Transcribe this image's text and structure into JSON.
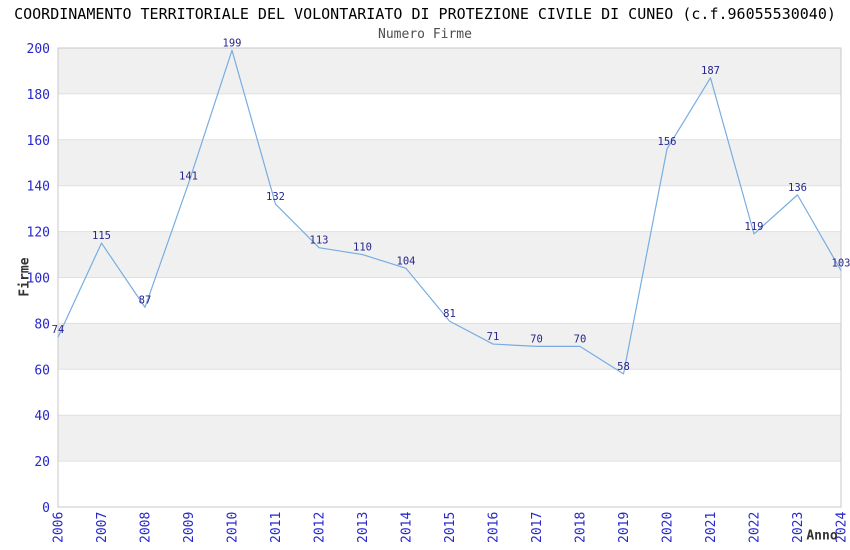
{
  "header": {
    "title": "COORDINAMENTO TERRITORIALE DEL VOLONTARIATO DI PROTEZIONE CIVILE DI CUNEO (c.f.96055530040)",
    "subtitle": "Numero Firme"
  },
  "chart_data": {
    "type": "line",
    "title": "Numero Firme",
    "xlabel": "Anno",
    "ylabel": "Firme",
    "categories": [
      "2006",
      "2007",
      "2008",
      "2009",
      "2010",
      "2011",
      "2012",
      "2013",
      "2014",
      "2015",
      "2016",
      "2017",
      "2018",
      "2019",
      "2020",
      "2021",
      "2022",
      "2023",
      "2024"
    ],
    "values": [
      74,
      115,
      87,
      141,
      199,
      132,
      113,
      110,
      104,
      81,
      71,
      70,
      70,
      58,
      156,
      187,
      119,
      136,
      103
    ],
    "ylim": [
      0,
      200
    ],
    "ytick_step": 20,
    "yticks": [
      0,
      20,
      40,
      60,
      80,
      100,
      120,
      140,
      160,
      180,
      200
    ],
    "grid": "horizontal-bands-alternating",
    "legend": "none",
    "point_labels_visible": true,
    "x_tick_rotation_degrees": -90,
    "colors": {
      "line": "#79ADE1",
      "point_label": "#26268C",
      "tick_label": "#2727CC",
      "band": "#F0F0F0",
      "gridline": "#E0E0E0",
      "plot_border": "#C8C8C8",
      "title": "#000000",
      "subtitle": "#4D4D4D",
      "axis_title": "#333333",
      "background": "#FFFFFF"
    }
  }
}
